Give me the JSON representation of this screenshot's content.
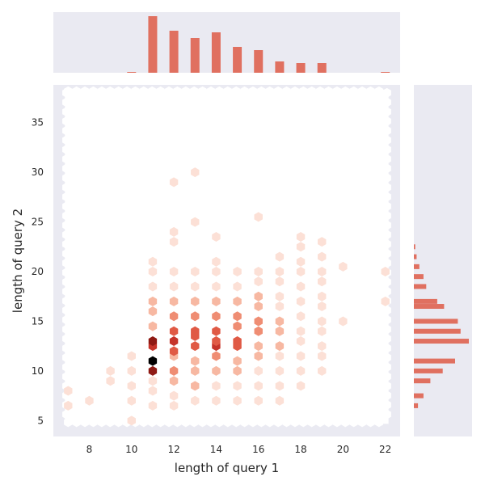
{
  "colors": {
    "axes_background": "#eaeaf2",
    "bar": "#e07060",
    "hex_scale": [
      "#ffffff",
      "#fce0d6",
      "#f7b8a2",
      "#ef8d73",
      "#e05a45",
      "#c6342a",
      "#8f1a14",
      "#000000"
    ],
    "grid": "#ffffff"
  },
  "chart_data": [
    {
      "type": "heatmap",
      "subtype": "hexbin",
      "xlabel": "length of query 1",
      "ylabel": "length of query 2",
      "xlim": [
        6.3,
        22.7
      ],
      "ylim": [
        3.4,
        38.8
      ],
      "xticks": [
        8,
        10,
        12,
        14,
        16,
        18,
        20,
        22
      ],
      "yticks": [
        5,
        10,
        15,
        20,
        25,
        30,
        35
      ],
      "grid": false,
      "legend": "none",
      "cells": [
        {
          "x": 7.0,
          "y": 8.0,
          "count": 0.3
        },
        {
          "x": 7.0,
          "y": 6.5,
          "count": 0.2
        },
        {
          "x": 8.0,
          "y": 7.0,
          "count": 0.2
        },
        {
          "x": 9.0,
          "y": 10.0,
          "count": 1.0
        },
        {
          "x": 9.0,
          "y": 9.0,
          "count": 0.3
        },
        {
          "x": 10.0,
          "y": 10.0,
          "count": 1.0
        },
        {
          "x": 10.0,
          "y": 8.5,
          "count": 0.5
        },
        {
          "x": 10.0,
          "y": 7.0,
          "count": 0.3
        },
        {
          "x": 10.0,
          "y": 5.0,
          "count": 0.2
        },
        {
          "x": 10.0,
          "y": 11.5,
          "count": 0.5
        },
        {
          "x": 11.0,
          "y": 10.0,
          "count": 5.5
        },
        {
          "x": 11.0,
          "y": 11.0,
          "count": 7.0
        },
        {
          "x": 11.0,
          "y": 12.5,
          "count": 5.0
        },
        {
          "x": 11.0,
          "y": 13.0,
          "count": 6.0
        },
        {
          "x": 11.0,
          "y": 14.5,
          "count": 2.0
        },
        {
          "x": 11.0,
          "y": 16.0,
          "count": 1.5
        },
        {
          "x": 11.0,
          "y": 17.0,
          "count": 1.5
        },
        {
          "x": 11.0,
          "y": 18.5,
          "count": 1.0
        },
        {
          "x": 11.0,
          "y": 20.0,
          "count": 0.8
        },
        {
          "x": 11.0,
          "y": 21.0,
          "count": 0.5
        },
        {
          "x": 11.0,
          "y": 9.0,
          "count": 1.0
        },
        {
          "x": 11.0,
          "y": 8.0,
          "count": 0.8
        },
        {
          "x": 11.0,
          "y": 6.5,
          "count": 0.5
        },
        {
          "x": 12.0,
          "y": 10.0,
          "count": 3.0
        },
        {
          "x": 12.0,
          "y": 11.5,
          "count": 1.5
        },
        {
          "x": 12.0,
          "y": 12.0,
          "count": 4.0
        },
        {
          "x": 12.0,
          "y": 13.0,
          "count": 5.0
        },
        {
          "x": 12.0,
          "y": 14.0,
          "count": 4.0
        },
        {
          "x": 12.0,
          "y": 15.5,
          "count": 3.0
        },
        {
          "x": 12.0,
          "y": 17.0,
          "count": 2.0
        },
        {
          "x": 12.0,
          "y": 18.5,
          "count": 1.0
        },
        {
          "x": 12.0,
          "y": 20.0,
          "count": 0.5
        },
        {
          "x": 12.0,
          "y": 23.0,
          "count": 0.3
        },
        {
          "x": 12.0,
          "y": 24.0,
          "count": 0.3
        },
        {
          "x": 12.0,
          "y": 29.0,
          "count": 0.2
        },
        {
          "x": 12.0,
          "y": 9.0,
          "count": 1.5
        },
        {
          "x": 12.0,
          "y": 7.5,
          "count": 1.0
        },
        {
          "x": 12.0,
          "y": 6.5,
          "count": 0.5
        },
        {
          "x": 13.0,
          "y": 11.0,
          "count": 2.0
        },
        {
          "x": 13.0,
          "y": 12.5,
          "count": 3.5
        },
        {
          "x": 13.0,
          "y": 13.5,
          "count": 3.5
        },
        {
          "x": 13.0,
          "y": 14.0,
          "count": 4.0
        },
        {
          "x": 13.0,
          "y": 15.5,
          "count": 3.0
        },
        {
          "x": 13.0,
          "y": 17.0,
          "count": 1.5
        },
        {
          "x": 13.0,
          "y": 18.5,
          "count": 1.0
        },
        {
          "x": 13.0,
          "y": 20.0,
          "count": 0.5
        },
        {
          "x": 13.0,
          "y": 10.0,
          "count": 2.0
        },
        {
          "x": 13.0,
          "y": 8.5,
          "count": 1.5
        },
        {
          "x": 13.0,
          "y": 7.0,
          "count": 1.0
        },
        {
          "x": 13.0,
          "y": 25.0,
          "count": 0.3
        },
        {
          "x": 13.0,
          "y": 30.0,
          "count": 0.2
        },
        {
          "x": 14.0,
          "y": 10.0,
          "count": 2.0
        },
        {
          "x": 14.0,
          "y": 11.5,
          "count": 2.5
        },
        {
          "x": 14.0,
          "y": 12.5,
          "count": 4.5
        },
        {
          "x": 14.0,
          "y": 13.0,
          "count": 4.0
        },
        {
          "x": 14.0,
          "y": 14.0,
          "count": 4.0
        },
        {
          "x": 14.0,
          "y": 15.5,
          "count": 2.5
        },
        {
          "x": 14.0,
          "y": 17.0,
          "count": 1.5
        },
        {
          "x": 14.0,
          "y": 18.5,
          "count": 1.0
        },
        {
          "x": 14.0,
          "y": 20.0,
          "count": 0.5
        },
        {
          "x": 14.0,
          "y": 21.0,
          "count": 0.3
        },
        {
          "x": 14.0,
          "y": 8.5,
          "count": 1.0
        },
        {
          "x": 14.0,
          "y": 7.0,
          "count": 0.8
        },
        {
          "x": 14.0,
          "y": 23.5,
          "count": 0.3
        },
        {
          "x": 15.0,
          "y": 10.0,
          "count": 1.5
        },
        {
          "x": 15.0,
          "y": 11.0,
          "count": 1.5
        },
        {
          "x": 15.0,
          "y": 12.5,
          "count": 3.5
        },
        {
          "x": 15.0,
          "y": 13.0,
          "count": 3.5
        },
        {
          "x": 15.0,
          "y": 14.5,
          "count": 3.0
        },
        {
          "x": 15.0,
          "y": 15.5,
          "count": 3.0
        },
        {
          "x": 15.0,
          "y": 17.0,
          "count": 2.0
        },
        {
          "x": 15.0,
          "y": 18.5,
          "count": 1.0
        },
        {
          "x": 15.0,
          "y": 20.0,
          "count": 0.5
        },
        {
          "x": 15.0,
          "y": 8.5,
          "count": 0.8
        },
        {
          "x": 15.0,
          "y": 7.0,
          "count": 0.5
        },
        {
          "x": 16.0,
          "y": 10.0,
          "count": 1.0
        },
        {
          "x": 16.0,
          "y": 11.5,
          "count": 1.5
        },
        {
          "x": 16.0,
          "y": 12.5,
          "count": 2.0
        },
        {
          "x": 16.0,
          "y": 14.0,
          "count": 3.0
        },
        {
          "x": 16.0,
          "y": 15.0,
          "count": 2.5
        },
        {
          "x": 16.0,
          "y": 16.5,
          "count": 2.0
        },
        {
          "x": 16.0,
          "y": 17.5,
          "count": 1.5
        },
        {
          "x": 16.0,
          "y": 19.0,
          "count": 1.0
        },
        {
          "x": 16.0,
          "y": 20.0,
          "count": 0.5
        },
        {
          "x": 16.0,
          "y": 8.5,
          "count": 0.8
        },
        {
          "x": 16.0,
          "y": 7.0,
          "count": 0.5
        },
        {
          "x": 16.0,
          "y": 25.5,
          "count": 0.3
        },
        {
          "x": 17.0,
          "y": 10.0,
          "count": 0.8
        },
        {
          "x": 17.0,
          "y": 11.5,
          "count": 1.0
        },
        {
          "x": 17.0,
          "y": 12.5,
          "count": 1.5
        },
        {
          "x": 17.0,
          "y": 14.0,
          "count": 1.5
        },
        {
          "x": 17.0,
          "y": 15.0,
          "count": 1.5
        },
        {
          "x": 17.0,
          "y": 16.5,
          "count": 1.0
        },
        {
          "x": 17.0,
          "y": 17.5,
          "count": 1.0
        },
        {
          "x": 17.0,
          "y": 19.0,
          "count": 0.8
        },
        {
          "x": 17.0,
          "y": 20.0,
          "count": 0.5
        },
        {
          "x": 17.0,
          "y": 8.5,
          "count": 0.5
        },
        {
          "x": 17.0,
          "y": 7.0,
          "count": 0.3
        },
        {
          "x": 17.0,
          "y": 21.5,
          "count": 0.3
        },
        {
          "x": 18.0,
          "y": 10.0,
          "count": 0.8
        },
        {
          "x": 18.0,
          "y": 11.5,
          "count": 1.0
        },
        {
          "x": 18.0,
          "y": 13.0,
          "count": 1.0
        },
        {
          "x": 18.0,
          "y": 14.0,
          "count": 1.0
        },
        {
          "x": 18.0,
          "y": 15.5,
          "count": 1.0
        },
        {
          "x": 18.0,
          "y": 17.0,
          "count": 1.0
        },
        {
          "x": 18.0,
          "y": 18.5,
          "count": 0.8
        },
        {
          "x": 18.0,
          "y": 20.0,
          "count": 0.8
        },
        {
          "x": 18.0,
          "y": 21.0,
          "count": 0.5
        },
        {
          "x": 18.0,
          "y": 22.5,
          "count": 0.3
        },
        {
          "x": 18.0,
          "y": 23.5,
          "count": 0.3
        },
        {
          "x": 18.0,
          "y": 8.5,
          "count": 0.3
        },
        {
          "x": 19.0,
          "y": 10.0,
          "count": 0.5
        },
        {
          "x": 19.0,
          "y": 11.5,
          "count": 0.8
        },
        {
          "x": 19.0,
          "y": 12.5,
          "count": 0.8
        },
        {
          "x": 19.0,
          "y": 14.0,
          "count": 0.8
        },
        {
          "x": 19.0,
          "y": 15.0,
          "count": 0.8
        },
        {
          "x": 19.0,
          "y": 16.5,
          "count": 0.8
        },
        {
          "x": 19.0,
          "y": 17.5,
          "count": 0.8
        },
        {
          "x": 19.0,
          "y": 19.0,
          "count": 1.0
        },
        {
          "x": 19.0,
          "y": 20.0,
          "count": 0.5
        },
        {
          "x": 19.0,
          "y": 21.5,
          "count": 0.3
        },
        {
          "x": 19.0,
          "y": 23.0,
          "count": 0.3
        },
        {
          "x": 20.0,
          "y": 20.5,
          "count": 0.3
        },
        {
          "x": 20.0,
          "y": 15.0,
          "count": 0.2
        },
        {
          "x": 22.0,
          "y": 17.0,
          "count": 0.5
        },
        {
          "x": 22.0,
          "y": 20.0,
          "count": 0.3
        }
      ]
    },
    {
      "type": "bar",
      "name": "marginal-x",
      "x": [
        10,
        11,
        12,
        13,
        14,
        15,
        16,
        17,
        18,
        19,
        22
      ],
      "values": [
        1,
        70,
        52,
        43,
        50,
        32,
        28,
        14,
        12,
        12,
        1
      ]
    },
    {
      "type": "bar",
      "orientation": "horizontal",
      "name": "marginal-y",
      "y": [
        6.5,
        7.5,
        9,
        10,
        11,
        13,
        14,
        15,
        16.5,
        17,
        18.5,
        19.5,
        20.5,
        21.5,
        22.5
      ],
      "values": [
        3,
        7,
        12,
        21,
        30,
        40,
        34,
        32,
        22,
        17,
        9,
        7,
        4,
        2,
        1
      ]
    }
  ]
}
